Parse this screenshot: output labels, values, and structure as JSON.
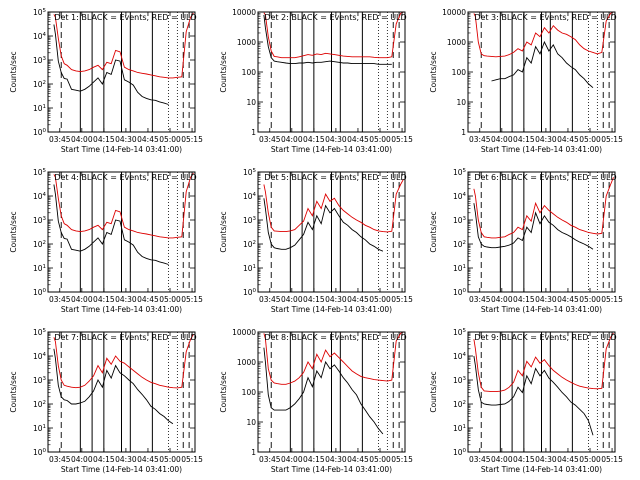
{
  "figure": {
    "xlabel": "Start Time (14-Feb-14 03:41:00)",
    "ylabel": "Counts/sec",
    "xticks": [
      "03:45",
      "04:00",
      "04:15",
      "04:30",
      "04:45",
      "05:00",
      "05:15"
    ],
    "colors": {
      "events": "#000000",
      "uld": "#dd0000"
    }
  },
  "chart_data": [
    {
      "type": "line",
      "title": "Det 1: BLACK = Events, RED = ULD",
      "ylog": true,
      "ylim": [
        1,
        100000
      ],
      "ytick_labels": [
        "10^0",
        "10^1",
        "10^2",
        "10^3",
        "10^4",
        "10^5"
      ],
      "x_minutes": [
        0,
        1,
        3,
        5,
        7,
        9,
        12,
        15,
        18,
        21,
        24,
        27,
        30,
        33,
        36,
        39,
        42,
        45,
        48,
        51,
        54,
        57,
        60,
        63,
        66,
        69,
        72,
        75,
        78,
        81,
        84,
        87,
        90,
        93,
        95
      ],
      "series": [
        {
          "label": "Events",
          "color": "#000000",
          "values": [
            30000,
            12000,
            900,
            300,
            170,
            160,
            60,
            55,
            50,
            60,
            80,
            120,
            180,
            100,
            300,
            250,
            1000,
            900,
            150,
            120,
            90,
            45,
            30,
            25,
            22,
            21,
            18,
            16,
            14,
            null,
            null,
            null,
            null,
            null,
            null
          ]
        },
        {
          "label": "ULD",
          "color": "#dd0000",
          "values": [
            80000,
            60000,
            8000,
            1500,
            700,
            600,
            400,
            350,
            330,
            350,
            400,
            500,
            600,
            400,
            800,
            700,
            2500,
            2200,
            500,
            400,
            350,
            300,
            280,
            260,
            240,
            220,
            200,
            190,
            180,
            180,
            190,
            200,
            15000,
            60000,
            90000
          ]
        }
      ]
    },
    {
      "type": "line",
      "title": "Det 2: BLACK = Events, RED = ULD",
      "ylog": true,
      "ylim": [
        1,
        10000
      ],
      "ytick_labels": [
        "1",
        "10",
        "100",
        "1000",
        "10000"
      ],
      "x_minutes": [
        0,
        1,
        3,
        5,
        7,
        9,
        12,
        15,
        18,
        21,
        24,
        27,
        30,
        33,
        36,
        39,
        42,
        45,
        48,
        51,
        54,
        57,
        60,
        63,
        66,
        69,
        72,
        75,
        78,
        81,
        84,
        87,
        90,
        93,
        95
      ],
      "series": [
        {
          "label": "Events",
          "color": "#000000",
          "values": [
            8000,
            3000,
            700,
            300,
            230,
            220,
            210,
            200,
            190,
            190,
            200,
            200,
            210,
            200,
            210,
            210,
            220,
            230,
            220,
            210,
            200,
            200,
            190,
            190,
            190,
            190,
            190,
            190,
            180,
            180,
            180,
            180,
            null,
            null,
            null
          ]
        },
        {
          "label": "ULD",
          "color": "#dd0000",
          "values": [
            9500,
            8000,
            1500,
            500,
            330,
            320,
            300,
            300,
            300,
            300,
            320,
            350,
            380,
            360,
            400,
            380,
            420,
            400,
            380,
            360,
            340,
            330,
            320,
            320,
            320,
            320,
            320,
            310,
            300,
            300,
            300,
            320,
            4000,
            9000,
            10000
          ]
        }
      ]
    },
    {
      "type": "line",
      "title": "Det 3: BLACK = Events, RED = ULD",
      "ylog": true,
      "ylim": [
        1,
        10000
      ],
      "ytick_labels": [
        "1",
        "10",
        "100",
        "1000",
        "10000"
      ],
      "x_minutes": [
        0,
        1,
        3,
        5,
        7,
        9,
        12,
        15,
        18,
        21,
        24,
        27,
        30,
        33,
        36,
        39,
        42,
        45,
        48,
        51,
        54,
        57,
        60,
        63,
        66,
        69,
        72,
        75,
        78,
        81,
        84,
        87,
        90,
        93,
        95
      ],
      "series": [
        {
          "label": "Events",
          "color": "#000000",
          "values": [
            null,
            null,
            null,
            null,
            null,
            null,
            50,
            55,
            60,
            60,
            70,
            80,
            120,
            100,
            300,
            200,
            700,
            400,
            1000,
            500,
            800,
            400,
            300,
            200,
            150,
            120,
            80,
            60,
            40,
            30,
            null,
            null,
            null,
            null,
            null
          ]
        },
        {
          "label": "ULD",
          "color": "#dd0000",
          "values": [
            9000,
            7000,
            1000,
            400,
            350,
            340,
            330,
            320,
            330,
            340,
            380,
            450,
            600,
            500,
            1000,
            800,
            2000,
            1500,
            3000,
            2000,
            3500,
            2500,
            2000,
            1800,
            1500,
            1200,
            800,
            600,
            500,
            450,
            400,
            450,
            5000,
            9000,
            10000
          ]
        }
      ]
    },
    {
      "type": "line",
      "title": "Det 4: BLACK = Events, RED = ULD",
      "ylog": true,
      "ylim": [
        1,
        100000
      ],
      "ytick_labels": [
        "10^0",
        "10^1",
        "10^2",
        "10^3",
        "10^4",
        "10^5"
      ],
      "x_minutes": [
        0,
        1,
        3,
        5,
        7,
        9,
        12,
        15,
        18,
        21,
        24,
        27,
        30,
        33,
        36,
        39,
        42,
        45,
        48,
        51,
        54,
        57,
        60,
        63,
        66,
        69,
        72,
        75,
        78,
        81,
        84,
        87,
        90,
        93,
        95
      ],
      "series": [
        {
          "label": "Events",
          "color": "#000000",
          "values": [
            30000,
            12000,
            900,
            300,
            170,
            160,
            60,
            55,
            50,
            60,
            80,
            120,
            180,
            100,
            300,
            250,
            1000,
            900,
            150,
            120,
            90,
            45,
            30,
            25,
            22,
            21,
            18,
            16,
            14,
            null,
            null,
            null,
            null,
            null,
            null
          ]
        },
        {
          "label": "ULD",
          "color": "#dd0000",
          "values": [
            80000,
            60000,
            8000,
            1500,
            700,
            600,
            400,
            350,
            330,
            350,
            400,
            500,
            600,
            400,
            800,
            700,
            2500,
            2200,
            500,
            400,
            350,
            300,
            280,
            260,
            240,
            220,
            200,
            190,
            180,
            180,
            190,
            200,
            15000,
            60000,
            90000
          ]
        }
      ]
    },
    {
      "type": "line",
      "title": "Det 5: BLACK = Events, RED = ULD",
      "ylog": true,
      "ylim": [
        1,
        100000
      ],
      "ytick_labels": [
        "10^0",
        "10^1",
        "10^2",
        "10^3",
        "10^4",
        "10^5"
      ],
      "x_minutes": [
        0,
        1,
        3,
        5,
        7,
        9,
        12,
        15,
        18,
        21,
        24,
        27,
        30,
        33,
        36,
        39,
        42,
        45,
        48,
        51,
        54,
        57,
        60,
        63,
        66,
        69,
        72,
        75,
        78,
        81,
        84,
        87,
        90,
        93,
        95
      ],
      "series": [
        {
          "label": "Events",
          "color": "#000000",
          "values": [
            8000,
            3000,
            300,
            100,
            70,
            65,
            60,
            60,
            70,
            90,
            150,
            250,
            800,
            400,
            1500,
            700,
            4000,
            2000,
            3000,
            1500,
            800,
            600,
            400,
            300,
            200,
            150,
            100,
            80,
            60,
            50,
            null,
            null,
            null,
            null,
            null
          ]
        },
        {
          "label": "ULD",
          "color": "#dd0000",
          "values": [
            30000,
            15000,
            2000,
            500,
            350,
            340,
            330,
            330,
            350,
            400,
            600,
            900,
            3000,
            1500,
            6000,
            3000,
            12000,
            6000,
            8000,
            4000,
            2500,
            1800,
            1300,
            1000,
            800,
            600,
            500,
            400,
            350,
            330,
            320,
            340,
            12000,
            30000,
            50000
          ]
        }
      ]
    },
    {
      "type": "line",
      "title": "Det 6: BLACK = Events, RED = ULD",
      "ylog": true,
      "ylim": [
        1,
        100000
      ],
      "ytick_labels": [
        "10^0",
        "10^1",
        "10^2",
        "10^3",
        "10^4",
        "10^5"
      ],
      "x_minutes": [
        0,
        1,
        3,
        5,
        7,
        9,
        12,
        15,
        18,
        21,
        24,
        27,
        30,
        33,
        36,
        39,
        42,
        45,
        48,
        51,
        54,
        57,
        60,
        63,
        66,
        69,
        72,
        75,
        78,
        81,
        84,
        87,
        90,
        93,
        95
      ],
      "series": [
        {
          "label": "Events",
          "color": "#000000",
          "values": [
            5000,
            2000,
            200,
            100,
            80,
            75,
            70,
            70,
            75,
            80,
            90,
            110,
            180,
            140,
            500,
            300,
            2000,
            700,
            1500,
            800,
            600,
            400,
            300,
            250,
            200,
            150,
            120,
            100,
            80,
            60,
            null,
            null,
            null,
            null,
            null
          ]
        },
        {
          "label": "ULD",
          "color": "#dd0000",
          "values": [
            20000,
            10000,
            1000,
            300,
            200,
            190,
            180,
            180,
            190,
            200,
            250,
            300,
            500,
            400,
            1500,
            900,
            5000,
            2000,
            4000,
            2500,
            1800,
            1300,
            1000,
            800,
            600,
            500,
            400,
            350,
            300,
            280,
            260,
            280,
            10000,
            30000,
            60000
          ]
        }
      ]
    },
    {
      "type": "line",
      "title": "Det 7: BLACK = Events, RED = ULD",
      "ylog": true,
      "ylim": [
        1,
        100000
      ],
      "ytick_labels": [
        "10^0",
        "10^1",
        "10^2",
        "10^3",
        "10^4",
        "10^5"
      ],
      "x_minutes": [
        0,
        1,
        3,
        5,
        7,
        9,
        12,
        15,
        18,
        21,
        24,
        27,
        30,
        33,
        36,
        39,
        42,
        45,
        48,
        51,
        54,
        57,
        60,
        63,
        66,
        69,
        72,
        75,
        78,
        81,
        84,
        87,
        90,
        93,
        95
      ],
      "series": [
        {
          "label": "Events",
          "color": "#000000",
          "values": [
            20000,
            8000,
            600,
            200,
            150,
            140,
            100,
            100,
            110,
            130,
            200,
            350,
            1000,
            500,
            2500,
            1200,
            4000,
            2000,
            1500,
            1000,
            700,
            400,
            250,
            150,
            80,
            60,
            40,
            30,
            20,
            15,
            null,
            null,
            null,
            null,
            null
          ]
        },
        {
          "label": "ULD",
          "color": "#dd0000",
          "values": [
            60000,
            40000,
            4000,
            1000,
            600,
            550,
            500,
            480,
            500,
            600,
            900,
            1500,
            4000,
            2000,
            8000,
            4500,
            10000,
            6000,
            5000,
            3500,
            2500,
            1800,
            1300,
            1000,
            800,
            700,
            600,
            550,
            500,
            480,
            470,
            500,
            15000,
            50000,
            80000
          ]
        }
      ]
    },
    {
      "type": "line",
      "title": "Det 8: BLACK = Events, RED = ULD",
      "ylog": true,
      "ylim": [
        1,
        10000
      ],
      "ytick_labels": [
        "1",
        "10",
        "100",
        "1000",
        "10000"
      ],
      "x_minutes": [
        0,
        1,
        3,
        5,
        7,
        9,
        12,
        15,
        18,
        21,
        24,
        27,
        30,
        33,
        36,
        39,
        42,
        45,
        48,
        51,
        54,
        57,
        60,
        63,
        66,
        69,
        72,
        75,
        78,
        81,
        84,
        87,
        90,
        93,
        95
      ],
      "series": [
        {
          "label": "Events",
          "color": "#000000",
          "values": [
            3000,
            1000,
            80,
            30,
            25,
            25,
            25,
            25,
            30,
            40,
            60,
            100,
            300,
            150,
            500,
            300,
            1000,
            600,
            800,
            500,
            300,
            200,
            120,
            80,
            40,
            25,
            15,
            10,
            6,
            4,
            null,
            null,
            null,
            null,
            null
          ]
        },
        {
          "label": "ULD",
          "color": "#dd0000",
          "values": [
            9000,
            6000,
            600,
            250,
            200,
            190,
            180,
            180,
            200,
            230,
            300,
            450,
            1000,
            600,
            1800,
            1000,
            2500,
            1500,
            2000,
            1400,
            1000,
            700,
            500,
            400,
            330,
            300,
            280,
            260,
            250,
            240,
            230,
            250,
            5000,
            9000,
            10000
          ]
        }
      ]
    },
    {
      "type": "line",
      "title": "Det 9: BLACK = Events, RED = ULD",
      "ylog": true,
      "ylim": [
        1,
        100000
      ],
      "ytick_labels": [
        "10^0",
        "10^1",
        "10^2",
        "10^3",
        "10^4",
        "10^5"
      ],
      "x_minutes": [
        0,
        1,
        3,
        5,
        7,
        9,
        12,
        15,
        18,
        21,
        24,
        27,
        30,
        33,
        36,
        39,
        42,
        45,
        48,
        51,
        54,
        57,
        60,
        63,
        66,
        69,
        72,
        75,
        78,
        81,
        84,
        87,
        90,
        93,
        95
      ],
      "series": [
        {
          "label": "Events",
          "color": "#000000",
          "values": [
            10000,
            4000,
            400,
            120,
            100,
            95,
            90,
            90,
            95,
            100,
            130,
            200,
            500,
            300,
            1500,
            700,
            3000,
            1500,
            2500,
            1200,
            800,
            500,
            300,
            200,
            120,
            90,
            60,
            40,
            20,
            5,
            null,
            null,
            null,
            null,
            null
          ]
        },
        {
          "label": "ULD",
          "color": "#dd0000",
          "values": [
            50000,
            20000,
            2000,
            500,
            350,
            340,
            330,
            330,
            340,
            380,
            500,
            800,
            2500,
            1500,
            6000,
            3500,
            9000,
            5000,
            7000,
            4000,
            2500,
            1800,
            1300,
            1000,
            800,
            650,
            550,
            500,
            460,
            440,
            430,
            450,
            20000,
            60000,
            90000
          ]
        }
      ]
    }
  ]
}
